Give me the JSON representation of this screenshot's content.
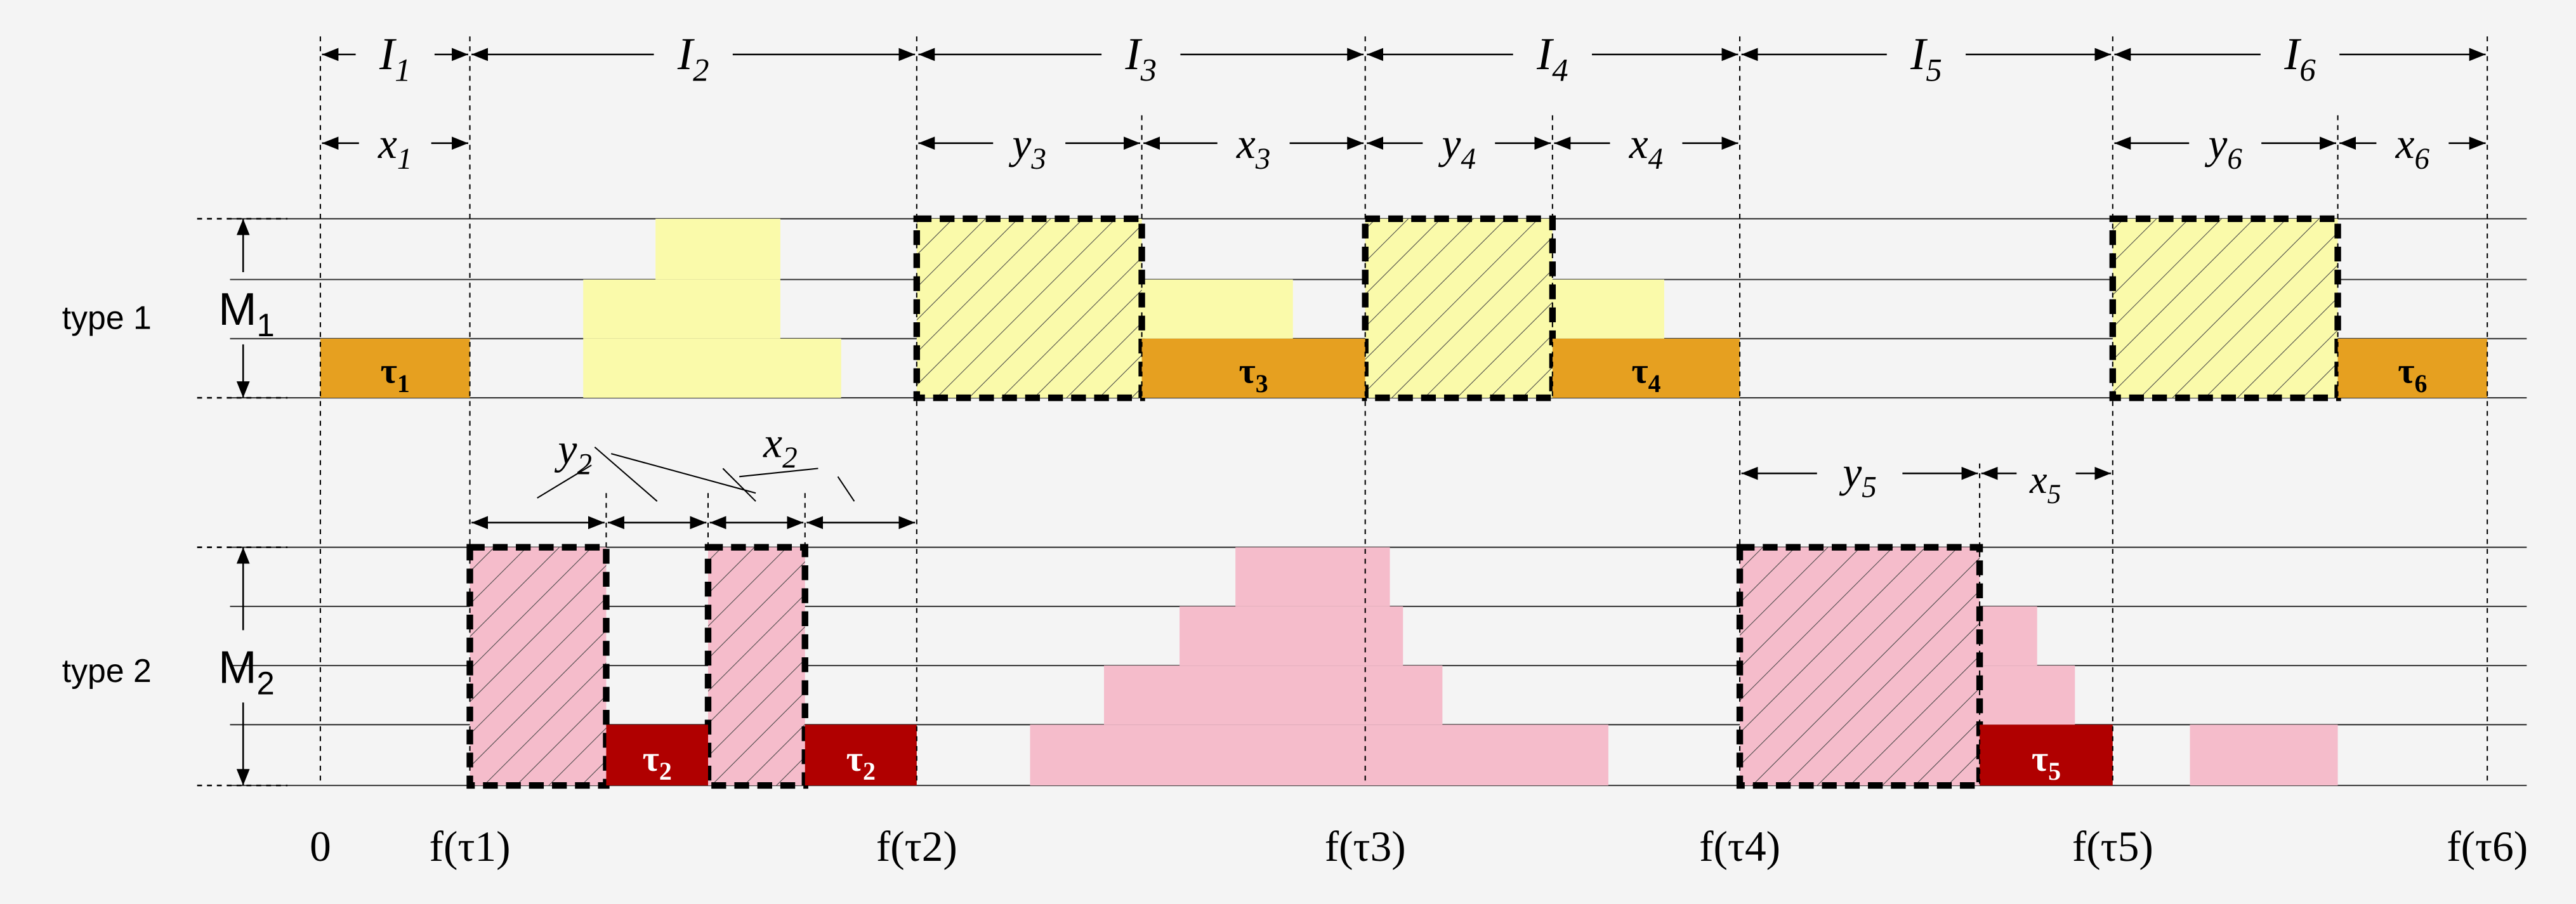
{
  "rows": [
    {
      "label": "type 1",
      "machines": {
        "name": "M",
        "index": "1"
      }
    },
    {
      "label": "type 2",
      "machines": {
        "name": "M",
        "index": "2"
      }
    }
  ],
  "intervals": [
    {
      "name": "I",
      "index": "1"
    },
    {
      "name": "I",
      "index": "2"
    },
    {
      "name": "I",
      "index": "3"
    },
    {
      "name": "I",
      "index": "4"
    },
    {
      "name": "I",
      "index": "5"
    },
    {
      "name": "I",
      "index": "6"
    }
  ],
  "segments": [
    {
      "name": "x",
      "index": "1"
    },
    {
      "name": "y",
      "index": "3"
    },
    {
      "name": "x",
      "index": "3"
    },
    {
      "name": "y",
      "index": "4"
    },
    {
      "name": "x",
      "index": "4"
    },
    {
      "name": "y",
      "index": "6"
    },
    {
      "name": "x",
      "index": "6"
    },
    {
      "name": "y",
      "index": "2"
    },
    {
      "name": "x",
      "index": "2"
    },
    {
      "name": "y",
      "index": "5"
    },
    {
      "name": "x",
      "index": "5"
    }
  ],
  "jobs": [
    {
      "name": "τ",
      "index": "1"
    },
    {
      "name": "τ",
      "index": "3"
    },
    {
      "name": "τ",
      "index": "4"
    },
    {
      "name": "τ",
      "index": "6"
    },
    {
      "name": "τ",
      "index": "2"
    },
    {
      "name": "τ",
      "index": "2"
    },
    {
      "name": "τ",
      "index": "5"
    }
  ],
  "axis": {
    "origin": "0",
    "ticks": [
      "f(τ1)",
      "f(τ2)",
      "f(τ3)",
      "f(τ4)",
      "f(τ5)",
      "f(τ6)"
    ]
  }
}
